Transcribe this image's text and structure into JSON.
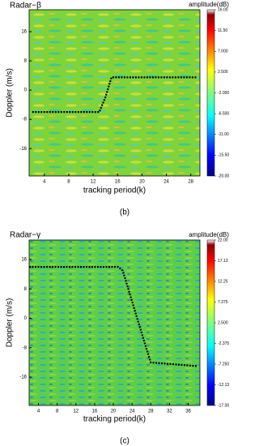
{
  "chart_data": [
    {
      "type": "line",
      "title": "Radar−β",
      "x_label": "tracking period(k)",
      "y_label": "Doppler (m/s)",
      "colorbar_label": "amplitude(dB)",
      "caption": "(b)",
      "x": [
        2,
        13,
        14,
        15,
        29
      ],
      "values": [
        -6,
        -6,
        -2,
        3.5,
        3.5
      ],
      "color": "#000000",
      "xlim": [
        1.5,
        29.5
      ],
      "ylim": [
        -23.5,
        22
      ],
      "xticks": [
        4,
        8,
        12,
        16,
        20,
        24,
        28
      ],
      "yticks": [
        -16,
        -8,
        0,
        8,
        16
      ],
      "clim": [
        -20,
        16
      ],
      "cticks": [
        {
          "value": 16,
          "label": "16.00"
        },
        {
          "value": 11.5,
          "label": "11.50"
        },
        {
          "value": 7,
          "label": "7.000"
        },
        {
          "value": 2.5,
          "label": "2.500"
        },
        {
          "value": -2,
          "label": "-2.000"
        },
        {
          "value": -6.5,
          "label": "-6.500"
        },
        {
          "value": -11,
          "label": "-11.00"
        },
        {
          "value": -15.5,
          "label": "-15.50"
        },
        {
          "value": -20,
          "label": "-20.00"
        }
      ]
    },
    {
      "type": "line",
      "title": "Radar−γ",
      "x_label": "tracking period(k)",
      "y_label": "Doppler (m/s)",
      "colorbar_label": "amplitude(dB)",
      "caption": "(c)",
      "x": [
        2,
        21,
        22,
        27,
        28,
        38
      ],
      "values": [
        14,
        14,
        13,
        -8,
        -12,
        -13
      ],
      "color": "#000000",
      "xlim": [
        2,
        38.5
      ],
      "ylim": [
        -23.7,
        21.3
      ],
      "xticks": [
        4,
        8,
        12,
        16,
        20,
        24,
        28,
        32,
        36
      ],
      "yticks": [
        -16,
        -8,
        0,
        8,
        16
      ],
      "clim": [
        -17,
        22
      ],
      "cticks": [
        {
          "value": 22,
          "label": "22.00"
        },
        {
          "value": 17.13,
          "label": "17.13"
        },
        {
          "value": 12.25,
          "label": "12.25"
        },
        {
          "value": 7.375,
          "label": "7.375"
        },
        {
          "value": 2.5,
          "label": "2.500"
        },
        {
          "value": -2.375,
          "label": "-2.375"
        },
        {
          "value": -7.25,
          "label": "-7.250"
        },
        {
          "value": -12.13,
          "label": "-12.13"
        },
        {
          "value": -17,
          "label": "-17.00"
        }
      ]
    }
  ]
}
